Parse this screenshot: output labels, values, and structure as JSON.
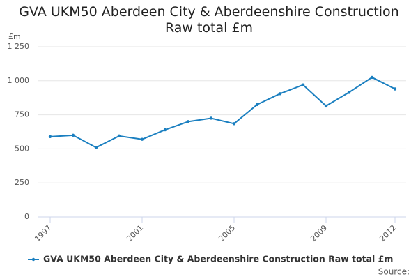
{
  "chart_data": {
    "type": "line",
    "title": "GVA UKM50 Aberdeen City & Aberdeenshire Construction Raw total £m",
    "y_label": "£m",
    "source": "Source:",
    "x": [
      1997,
      1998,
      1999,
      2000,
      2001,
      2002,
      2003,
      2004,
      2005,
      2006,
      2007,
      2008,
      2009,
      2010,
      2011,
      2012
    ],
    "series": [
      {
        "name": "GVA UKM50 Aberdeen City & Aberdeenshire Construction Raw total £m",
        "color": "#1a7fc0",
        "values": [
          590,
          600,
          510,
          595,
          570,
          640,
          700,
          725,
          685,
          825,
          905,
          970,
          815,
          915,
          1025,
          940
        ]
      }
    ],
    "xlim": [
      1997,
      2012
    ],
    "xticks": [
      1997,
      2001,
      2005,
      2009,
      2012
    ],
    "ylim": [
      0,
      1250
    ],
    "yticks": [
      0,
      250,
      500,
      750,
      {
        "value": 1000,
        "label": "1 000"
      },
      {
        "value": 1250,
        "label": "1 250"
      }
    ],
    "grid": true,
    "legend": "bottom-left"
  }
}
